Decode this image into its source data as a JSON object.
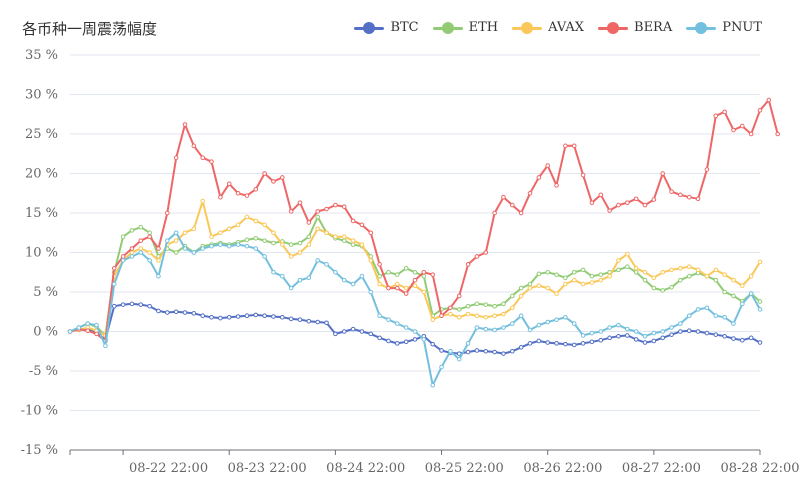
{
  "chart_data": {
    "type": "line",
    "title": "各币种一周震荡幅度",
    "xlabel": "",
    "ylabel": "",
    "ylim": [
      -15,
      35
    ],
    "y_ticks": [
      "35 %",
      "30 %",
      "25 %",
      "20 %",
      "15 %",
      "10 %",
      "5 %",
      "0 %",
      "-5 %",
      "-10 %",
      "-15 %"
    ],
    "x_ticks": [
      "08-22 22:00",
      "08-23 22:00",
      "08-24 22:00",
      "08-25 22:00",
      "08-26 22:00",
      "08-27 22:00",
      "08-28 22:00"
    ],
    "grid": true,
    "legend": "top-right",
    "series": [
      {
        "name": "BTC",
        "color": "#5470c6",
        "values": [
          0,
          0.2,
          0.3,
          -0.2,
          -1.0,
          3.2,
          3.4,
          3.5,
          3.4,
          3.2,
          2.6,
          2.4,
          2.5,
          2.4,
          2.3,
          2.0,
          1.8,
          1.7,
          1.8,
          1.9,
          2.0,
          2.1,
          2.0,
          1.9,
          1.8,
          1.6,
          1.5,
          1.3,
          1.2,
          1.1,
          -0.3,
          0,
          0.3,
          0,
          -0.3,
          -0.8,
          -1.2,
          -1.5,
          -1.3,
          -1.0,
          -0.6,
          -1.6,
          -2.4,
          -2.7,
          -2.8,
          -2.6,
          -2.4,
          -2.5,
          -2.6,
          -2.8,
          -2.5,
          -2.0,
          -1.5,
          -1.2,
          -1.4,
          -1.5,
          -1.6,
          -1.7,
          -1.5,
          -1.3,
          -1.1,
          -0.8,
          -0.6,
          -0.5,
          -1.0,
          -1.4,
          -1.2,
          -0.8,
          -0.4,
          0,
          0.1,
          0,
          -0.2,
          -0.4,
          -0.6,
          -0.9,
          -1.1,
          -0.8,
          -1.4
        ]
      },
      {
        "name": "ETH",
        "color": "#91cc75",
        "values": [
          0,
          0.5,
          1.0,
          0.6,
          -0.5,
          7.5,
          12.0,
          12.8,
          13.2,
          12.5,
          9.5,
          10.5,
          10.0,
          10.8,
          10.0,
          10.8,
          11.0,
          11.2,
          11.0,
          11.3,
          11.6,
          11.8,
          11.5,
          11.2,
          11.4,
          11.0,
          11.2,
          12.0,
          14.5,
          12.5,
          11.8,
          11.5,
          11.0,
          10.8,
          9.5,
          7.0,
          7.5,
          7.2,
          8.0,
          7.5,
          7.0,
          2.0,
          2.8,
          3.0,
          2.8,
          3.2,
          3.5,
          3.4,
          3.2,
          3.5,
          4.5,
          5.5,
          6.0,
          7.3,
          7.5,
          7.2,
          6.8,
          7.5,
          7.8,
          7.0,
          7.2,
          7.5,
          7.8,
          8.2,
          7.5,
          6.5,
          5.5,
          5.2,
          5.6,
          6.5,
          7.0,
          7.4,
          7.0,
          6.5,
          5.0,
          4.5,
          3.8,
          4.8,
          3.8
        ]
      },
      {
        "name": "AVAX",
        "color": "#fac858",
        "values": [
          0,
          0.2,
          0.5,
          0.1,
          -0.5,
          7.0,
          9.0,
          10.0,
          10.5,
          10.0,
          9.0,
          11.0,
          11.5,
          12.5,
          13.0,
          16.5,
          12.0,
          12.5,
          13.0,
          13.5,
          14.5,
          14.0,
          13.5,
          12.5,
          11.0,
          9.5,
          10.0,
          11.0,
          13.0,
          12.5,
          12.0,
          12.0,
          11.5,
          11.0,
          9.0,
          6.0,
          5.5,
          6.0,
          5.5,
          5.8,
          5.0,
          1.5,
          2.0,
          2.2,
          1.8,
          2.2,
          2.0,
          1.8,
          2.0,
          2.2,
          3.0,
          4.5,
          5.5,
          5.8,
          5.5,
          4.8,
          6.0,
          6.5,
          6.0,
          6.2,
          6.5,
          7.0,
          9.0,
          9.8,
          8.0,
          7.5,
          6.8,
          7.5,
          7.8,
          8.0,
          8.2,
          7.8,
          7.0,
          7.8,
          7.2,
          6.5,
          5.8,
          7.0,
          8.8
        ]
      },
      {
        "name": "BERA",
        "color": "#ee6666",
        "values": [
          0,
          0.3,
          0.1,
          -0.3,
          -1.2,
          8.0,
          9.5,
          10.5,
          11.5,
          12.0,
          10.5,
          15.0,
          22.0,
          26.2,
          23.5,
          22.0,
          21.5,
          17.0,
          18.7,
          17.5,
          17.2,
          18.0,
          20.0,
          19.0,
          19.5,
          15.2,
          16.3,
          13.8,
          15.2,
          15.5,
          16.0,
          15.8,
          14.0,
          13.5,
          12.5,
          8.5,
          5.5,
          5.5,
          4.8,
          6.5,
          7.5,
          7.2,
          2.0,
          3.0,
          4.5,
          8.5,
          9.5,
          10.0,
          15.0,
          17.0,
          16.0,
          15.0,
          17.5,
          19.5,
          21.0,
          18.5,
          23.5,
          23.5,
          19.8,
          16.3,
          17.3,
          15.3,
          16.0,
          16.3,
          16.8,
          16.0,
          16.7,
          20.0,
          17.7,
          17.3,
          17.0,
          16.8,
          20.5,
          27.3,
          27.8,
          25.5,
          26.0,
          25.0,
          28.0,
          29.3,
          25.0
        ]
      },
      {
        "name": "PNUT",
        "color": "#73c0de",
        "values": [
          0,
          0.5,
          1.0,
          0.8,
          -1.8,
          6.0,
          9.0,
          9.5,
          10.0,
          9.0,
          7.0,
          11.5,
          12.5,
          10.5,
          10.0,
          10.5,
          10.8,
          11.0,
          10.8,
          11.0,
          10.8,
          10.5,
          9.5,
          7.5,
          7.0,
          5.5,
          6.5,
          6.8,
          9.0,
          8.5,
          7.5,
          6.5,
          6.0,
          7.0,
          5.0,
          2.0,
          1.5,
          1.0,
          0.5,
          0,
          -1.0,
          -6.8,
          -4.5,
          -2.5,
          -3.5,
          -1.5,
          0.5,
          0.3,
          0.2,
          0.5,
          1.0,
          2.0,
          0.2,
          0.8,
          1.2,
          1.5,
          1.8,
          1.0,
          -0.5,
          -0.2,
          0,
          0.5,
          0.8,
          0.3,
          0,
          -0.6,
          -0.2,
          0,
          0.5,
          1.0,
          2.0,
          2.8,
          3.0,
          2.0,
          1.8,
          1.0,
          3.5,
          4.8,
          2.8
        ]
      }
    ]
  }
}
